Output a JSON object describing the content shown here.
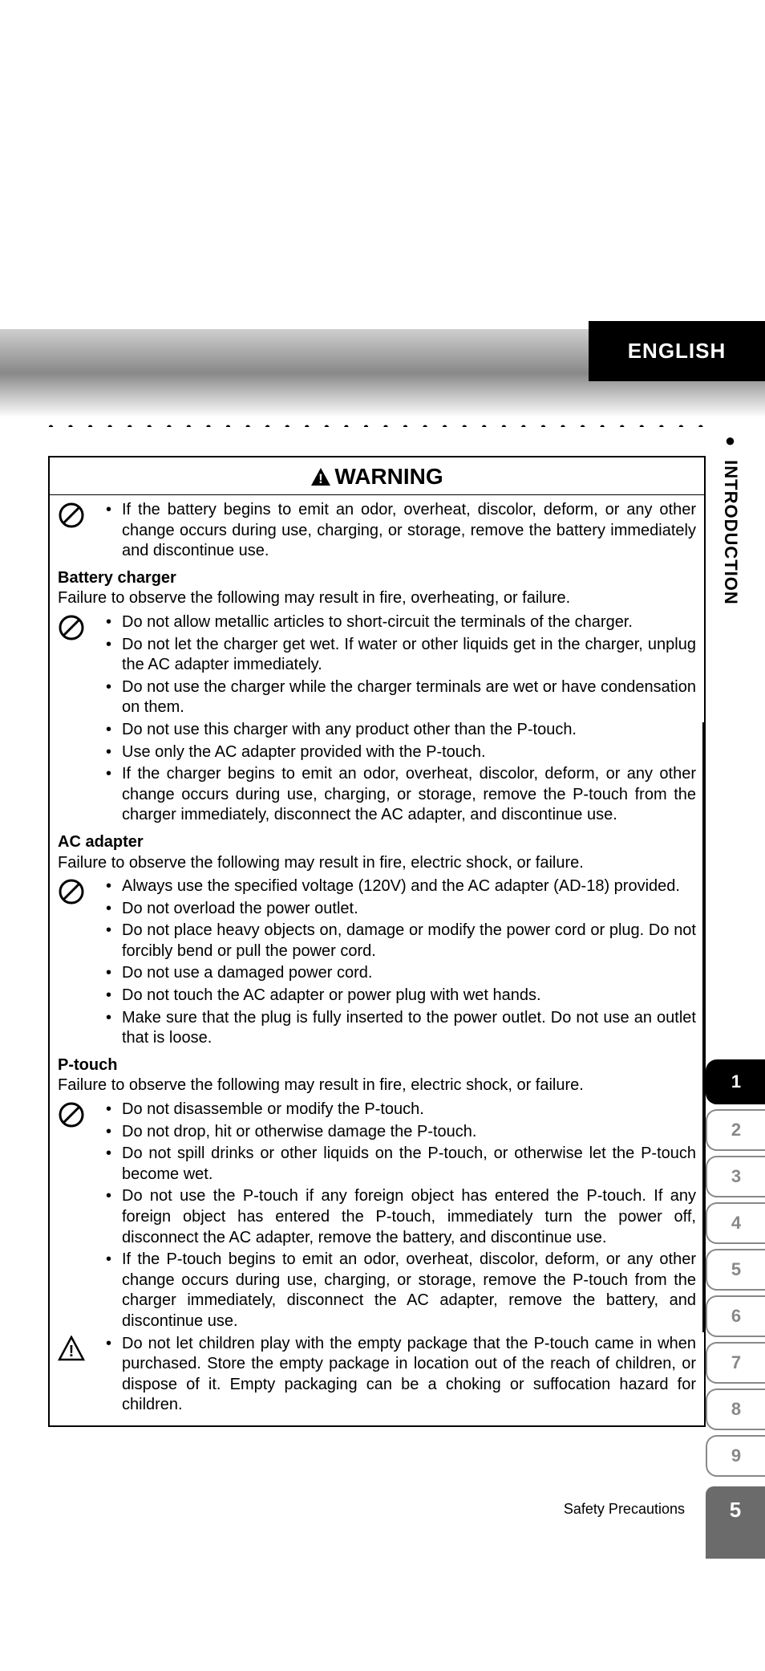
{
  "header": {
    "language": "ENGLISH",
    "section": "INTRODUCTION"
  },
  "warning": {
    "title": "WARNING",
    "battery_item": "If the battery begins to emit an odor, overheat, discolor, deform, or any other change occurs during use, charging, or storage, remove the battery immediately and discontinue use.",
    "charger": {
      "heading": "Battery charger",
      "lead": "Failure to observe the following may result in fire, overheating, or failure.",
      "items": [
        "Do not allow metallic articles to short-circuit the terminals of the charger.",
        "Do not let the charger get wet. If water or other liquids get in the charger, unplug the AC adapter immediately.",
        "Do not use the charger while the charger terminals are wet or have condensation on them.",
        "Do not use this charger with any product other than the P-touch.",
        "Use only the AC adapter provided with the P-touch.",
        "If the charger begins to emit an odor, overheat, discolor, deform, or any other change occurs during use, charging, or storage, remove the P-touch from the charger immediately, disconnect the AC adapter, and discontinue use."
      ]
    },
    "ac": {
      "heading": "AC adapter",
      "lead": "Failure to observe the following may result in fire, electric shock, or failure.",
      "items": [
        "Always use the specified voltage (120V) and the AC adapter (AD-18) provided.",
        "Do not overload the power outlet.",
        "Do not place heavy objects on, damage or modify the power cord or plug. Do not forcibly bend or pull the power cord.",
        "Do not use a damaged power cord.",
        "Do not touch the AC adapter or power plug with wet hands.",
        "Make sure that the plug is fully inserted to the power outlet. Do not use an outlet that is loose."
      ]
    },
    "ptouch": {
      "heading": "P-touch",
      "lead": "Failure to observe the following may result in fire, electric shock, or failure.",
      "items_prohibit": [
        "Do not disassemble or modify the P-touch.",
        "Do not drop, hit or otherwise damage the P-touch.",
        "Do not spill drinks or other liquids on the P-touch, or otherwise let the P-touch become wet.",
        "Do not use the P-touch if any foreign object has entered the P-touch.\nIf any foreign object has entered the P-touch, immediately turn the power off, disconnect the AC adapter, remove the battery, and discontinue use.",
        "If the P-touch begins to emit an odor, overheat, discolor, deform, or any other change occurs during use, charging, or storage, remove the P-touch from the charger immediately, disconnect the AC adapter, remove the battery, and discontinue use."
      ],
      "item_caution": "Do not let children play with the empty package that the P-touch came in when purchased. Store the empty package in location out of the reach of children, or dispose of it. Empty packaging can be a choking or suffocation hazard for children."
    }
  },
  "tabs": [
    "1",
    "2",
    "3",
    "4",
    "5",
    "6",
    "7",
    "8",
    "9"
  ],
  "active_tab": 0,
  "footer": {
    "section": "Safety Precautions",
    "page": "5"
  }
}
